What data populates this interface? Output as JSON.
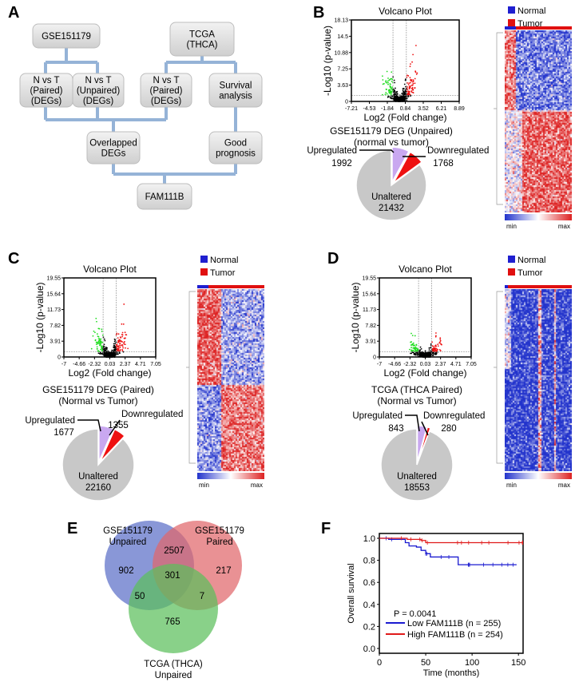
{
  "panels": {
    "a": "A",
    "b": "B",
    "c": "C",
    "d": "D",
    "e": "E",
    "f": "F"
  },
  "flowchart": {
    "gse": "GSE151179",
    "tcga": [
      "TCGA",
      "(THCA)"
    ],
    "gse_paired": [
      "N vs T",
      "(Paired)",
      "(DEGs)"
    ],
    "gse_unpaired": [
      "N vs T",
      "(Unpaired)",
      "(DEGs)"
    ],
    "tcga_paired": [
      "N vs T",
      "(Paired)",
      "(DEGs)"
    ],
    "survival": [
      "Survival",
      "analysis"
    ],
    "overlapped": [
      "Overlapped",
      "DEGs"
    ],
    "good": [
      "Good",
      "prognosis"
    ],
    "gene": "FAM111B",
    "line_color": "#95b3d7",
    "box_color": "#d4d4d4"
  },
  "colors": {
    "green": "#22dd22",
    "red": "#ee1111",
    "black": "#000000",
    "up": "#c9a8f0",
    "down": "#ee1111",
    "unaltered": "#c8c8c8",
    "normal": "#1f1fd0",
    "tumor": "#e01010",
    "heat_low": "#2233cc",
    "heat_high": "#dd2222"
  },
  "heatmap_legend": {
    "normal": "Normal",
    "tumor": "Tumor",
    "min": "min",
    "max": "max"
  },
  "chart_data": [
    {
      "id": "B-volcano",
      "type": "scatter",
      "title": "Volcano Plot",
      "xlabel": "Log2 (Fold change)",
      "ylabel": "-Log10 (p-value)",
      "xticks": [
        "-7.21",
        "-4.53",
        "-1.84",
        "0.84",
        "3.52",
        "6.21",
        "8.89"
      ],
      "yticks": [
        "0",
        "3.63",
        "7.25",
        "10.88",
        "14.5",
        "18.13"
      ],
      "xlim": [
        -7.21,
        8.89
      ],
      "ylim": [
        0,
        18.13
      ],
      "thresholds": {
        "x": [
          -1,
          1
        ],
        "y": 1.3
      }
    },
    {
      "id": "B-pie",
      "type": "pie",
      "title": [
        "GSE151179 DEG (Unpaired)",
        "(normal vs tumor)"
      ],
      "slices": [
        {
          "label": "Upregulated",
          "value": 1992
        },
        {
          "label": "Downregulated",
          "value": 1768
        },
        {
          "label": "Unaltered",
          "value": 21432
        }
      ]
    },
    {
      "id": "C-volcano",
      "type": "scatter",
      "title": "Volcano Plot",
      "xlabel": "Log2 (Fold change)",
      "ylabel": "-Log10 (p-value)",
      "xticks": [
        "-7",
        "-4.66",
        "-2.32",
        "0.03",
        "2.37",
        "4.71",
        "7.05"
      ],
      "yticks": [
        "0",
        "3.91",
        "7.82",
        "11.73",
        "15.64",
        "19.55"
      ],
      "xlim": [
        -7,
        7.05
      ],
      "ylim": [
        0,
        19.55
      ],
      "thresholds": {
        "x": [
          -1,
          1
        ],
        "y": 1.3
      }
    },
    {
      "id": "C-pie",
      "type": "pie",
      "title": [
        "GSE151179 DEG (Paired)",
        "(Normal vs Tumor)"
      ],
      "slices": [
        {
          "label": "Upregulated",
          "value": 1677
        },
        {
          "label": "Downregulated",
          "value": 1355
        },
        {
          "label": "Unaltered",
          "value": 22160
        }
      ]
    },
    {
      "id": "D-volcano",
      "type": "scatter",
      "title": "Volcano Plot",
      "xlabel": "Log2 (Fold change)",
      "ylabel": "-Log10 (p-value)",
      "xticks": [
        "-7",
        "-4.66",
        "-2.32",
        "0.03",
        "2.37",
        "4.71",
        "7.05"
      ],
      "yticks": [
        "0",
        "3.91",
        "7.82",
        "11.73",
        "15.64",
        "19.55"
      ],
      "xlim": [
        -7,
        7.05
      ],
      "ylim": [
        0,
        19.55
      ],
      "thresholds": {
        "x": [
          -1,
          1
        ],
        "y": 1.3
      }
    },
    {
      "id": "D-pie",
      "type": "pie",
      "title": [
        "TCGA (THCA Paired)",
        "(Normal vs Tumor)"
      ],
      "slices": [
        {
          "label": "Upregulated",
          "value": 843
        },
        {
          "label": "Downregulated",
          "value": 280
        },
        {
          "label": "Unaltered",
          "value": 18553
        }
      ]
    },
    {
      "id": "E-venn",
      "type": "venn",
      "sets": [
        {
          "label": [
            "GSE151179",
            "Unpaired"
          ],
          "color": "#5b6fc7"
        },
        {
          "label": [
            "GSE151179",
            "Paired"
          ],
          "color": "#e0676b"
        },
        {
          "label": [
            "TCGA (THCA)",
            "Unpaired"
          ],
          "color": "#5cbf5c"
        }
      ],
      "regions": {
        "only_unpaired": 902,
        "unpaired_paired": 2507,
        "only_paired": 217,
        "all": 301,
        "unpaired_tcga": 50,
        "paired_tcga": 7,
        "only_tcga": 765
      }
    },
    {
      "id": "F-km",
      "type": "line",
      "xlabel": "Time (months)",
      "ylabel": "Overall survival",
      "xlim": [
        0,
        155
      ],
      "ylim": [
        0,
        1.0
      ],
      "xticks": [
        "0",
        "50",
        "100",
        "150"
      ],
      "yticks": [
        "0.0",
        "0.2",
        "0.4",
        "0.6",
        "0.8",
        "1.0"
      ],
      "annotation": "P = 0.0041",
      "series": [
        {
          "name": "Low FAM111B (n = 255)",
          "color": "#1a1ad0",
          "x": [
            0,
            10,
            28,
            32,
            40,
            45,
            50,
            55,
            85,
            148
          ],
          "y": [
            1.0,
            0.99,
            0.96,
            0.93,
            0.92,
            0.89,
            0.86,
            0.83,
            0.76,
            0.76
          ]
        },
        {
          "name": "High FAM111B (n = 254)",
          "color": "#e01a1a",
          "x": [
            0,
            30,
            45,
            50,
            155
          ],
          "y": [
            1.0,
            0.99,
            0.98,
            0.96,
            0.96
          ]
        }
      ]
    }
  ]
}
